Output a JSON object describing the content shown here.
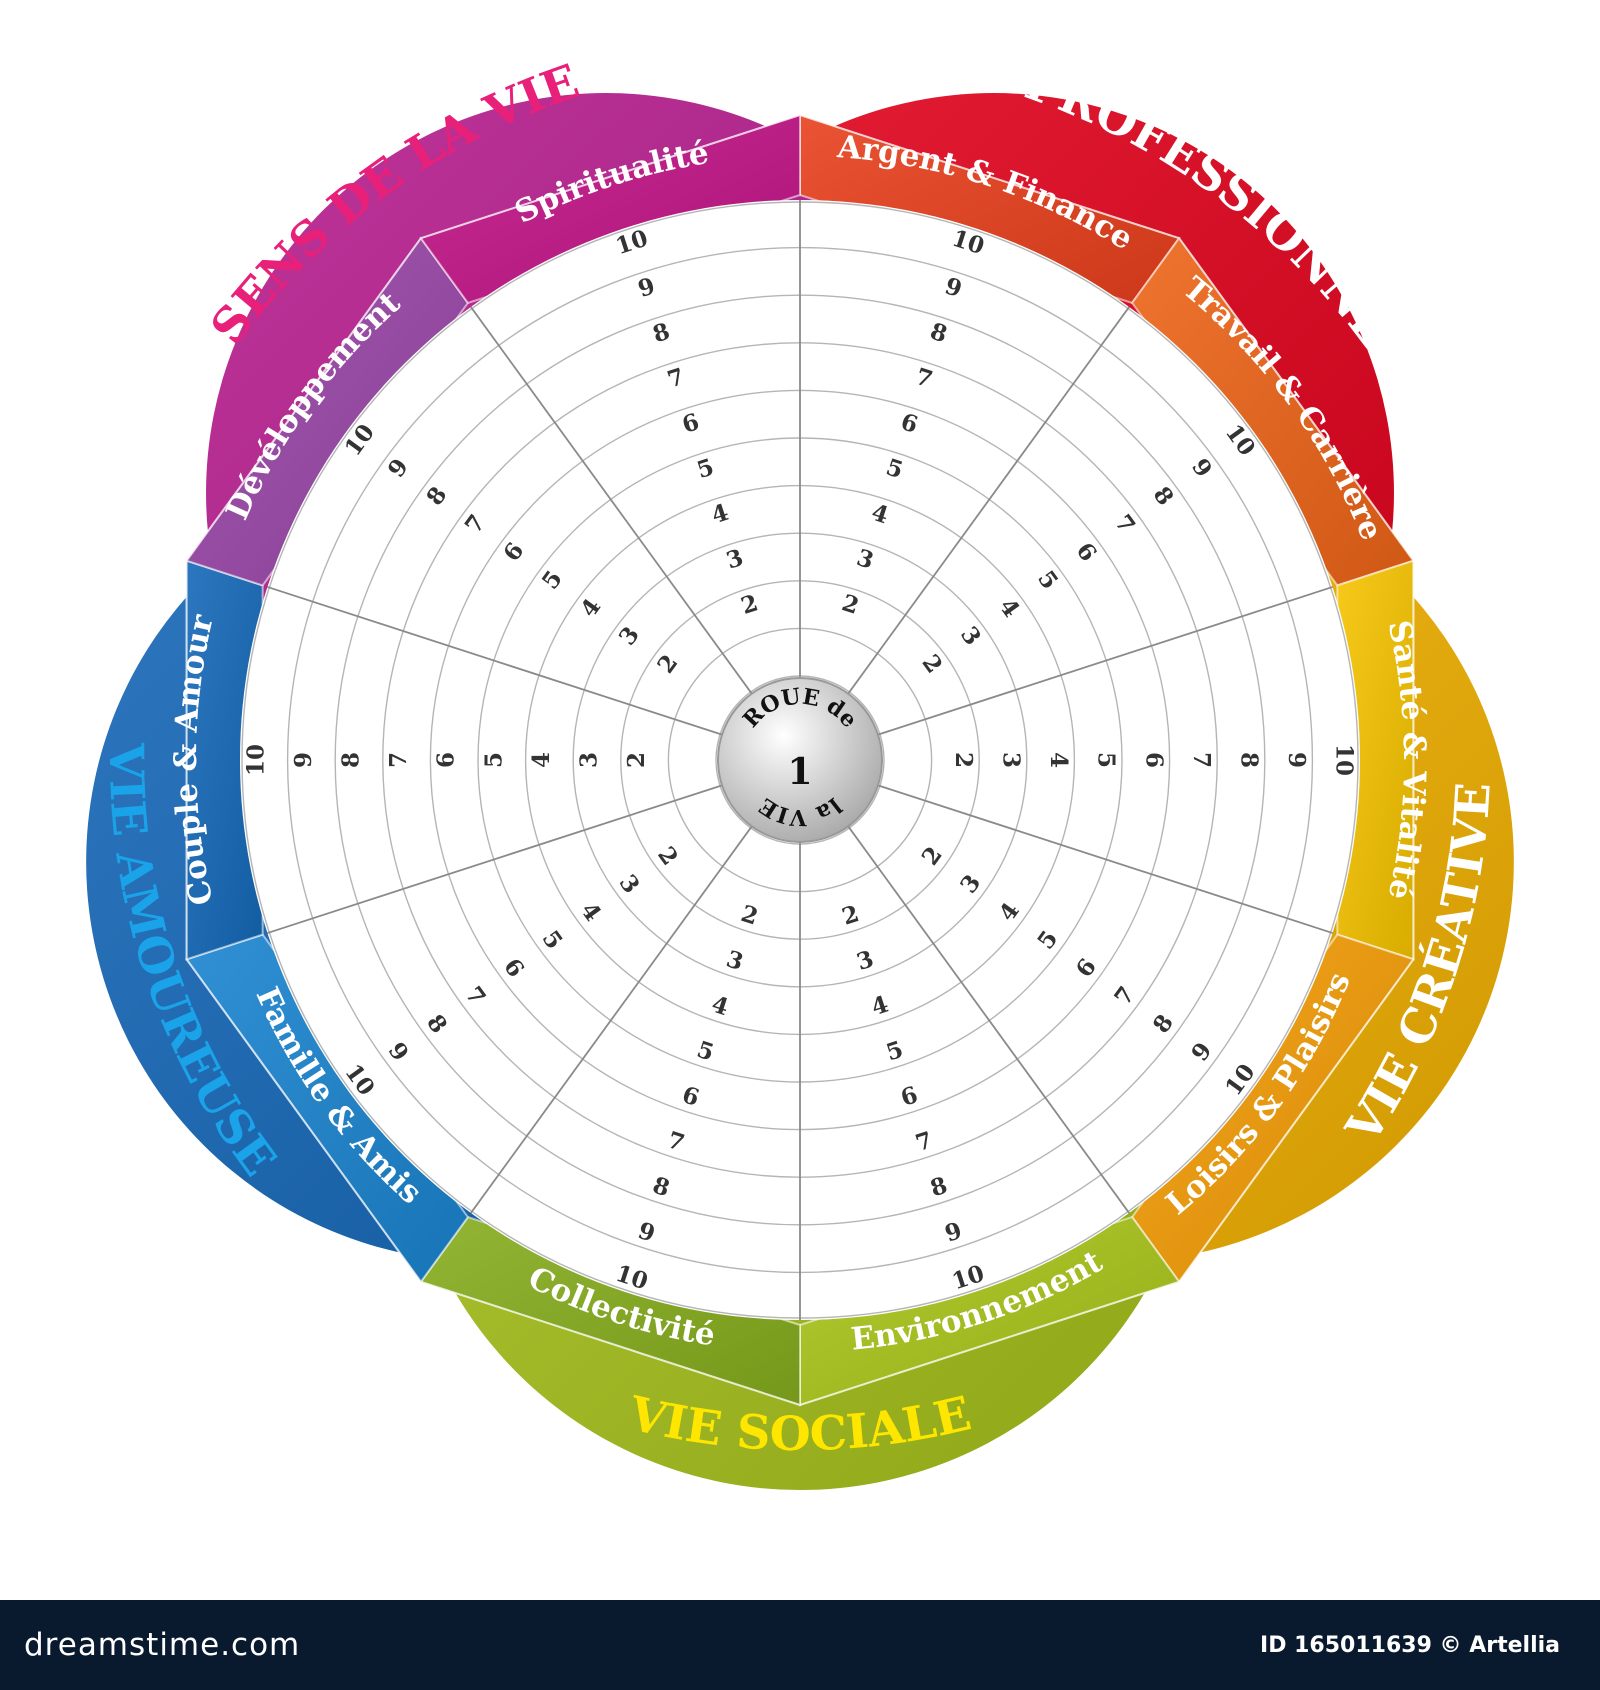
{
  "center": {
    "line1": "ROUE de",
    "number": "1",
    "line2": "la VIE"
  },
  "domains": [
    {
      "label": "VIE PROFESSIONNELLE",
      "color": "#e3001b"
    },
    {
      "label": "VIE CRÉATIVE",
      "color": "#f5b400"
    },
    {
      "label": "VIE SOCIALE",
      "color": "#a7c31b"
    },
    {
      "label": "VIE AMOUREUSE",
      "color": "#1366b7"
    },
    {
      "label": "SENS DE LA VIE",
      "color": "#b51a8c"
    }
  ],
  "areas": [
    {
      "label": "Argent & Finance",
      "color": "#e8401c"
    },
    {
      "label": "Travail & Carrière",
      "color": "#ec6418"
    },
    {
      "label": "Santé & Vitalité",
      "color": "#f5c300"
    },
    {
      "label": "Loisirs & Plaisirs",
      "color": "#f39c06"
    },
    {
      "label": "Environnement",
      "color": "#a9c51a"
    },
    {
      "label": "Collectivité",
      "color": "#86ad1d"
    },
    {
      "label": "Famille & Amis",
      "color": "#1a84cf"
    },
    {
      "label": "Couple & Amour",
      "color": "#1568b8"
    },
    {
      "label": "Dévéloppement",
      "color": "#9a46a8"
    },
    {
      "label": "Spiritualité",
      "color": "#c21487"
    }
  ],
  "scale": [
    "2",
    "3",
    "4",
    "5",
    "6",
    "7",
    "8",
    "9",
    "10"
  ],
  "footer": {
    "brand": "dreamstime.com",
    "credit": "ID 165011639 © Artellia"
  }
}
